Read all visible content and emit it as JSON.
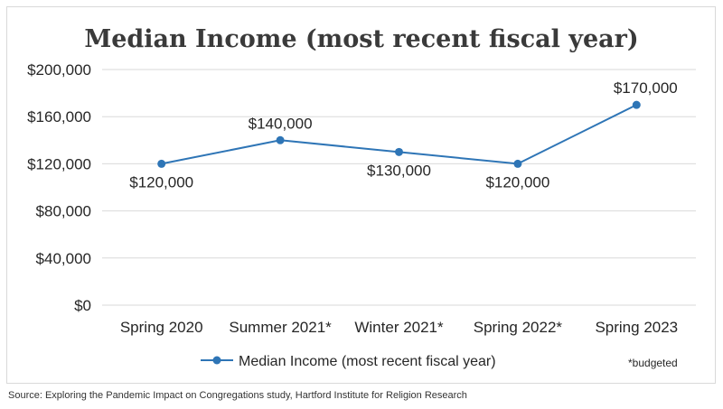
{
  "chart_data": {
    "type": "line",
    "title": "Median Income (most recent fiscal year)",
    "categories": [
      "Spring 2020",
      "Summer 2021*",
      "Winter 2021*",
      "Spring 2022*",
      "Spring 2023"
    ],
    "series": [
      {
        "name": "Median Income (most recent fiscal year)",
        "values": [
          120000,
          140000,
          130000,
          120000,
          170000
        ],
        "data_labels": [
          "$120,000",
          "$140,000",
          "$130,000",
          "$120,000",
          "$170,000"
        ],
        "color": "#2e75b6"
      }
    ],
    "ylim": [
      0,
      200000
    ],
    "y_ticks": [
      0,
      40000,
      80000,
      120000,
      160000,
      200000
    ],
    "y_tick_labels": [
      "$0",
      "$40,000",
      "$80,000",
      "$120,000",
      "$160,000",
      "$200,000"
    ],
    "grid": true,
    "legend": "bottom",
    "note": "*budgeted"
  },
  "source": "Source: Exploring the Pandemic Impact on Congregations study, Hartford Institute for Religion Research"
}
